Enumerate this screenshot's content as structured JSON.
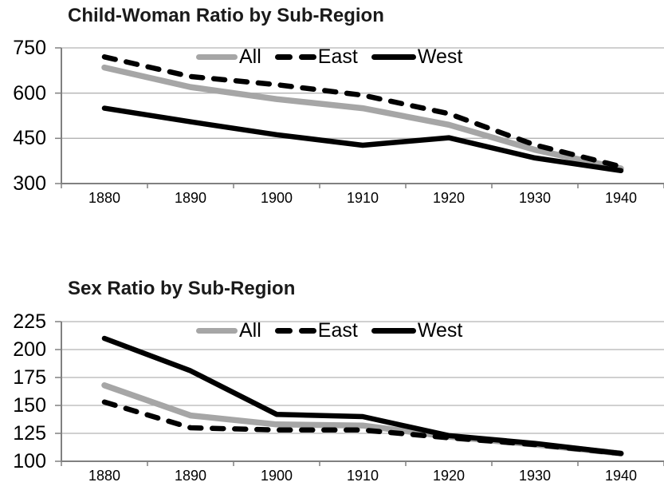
{
  "accent_colors": {
    "series_gray": "#a6a6a6",
    "series_black": "#000000",
    "gridline": "#b3b3b3",
    "axis": "#808080",
    "title_text": "#1a1a1a"
  },
  "chart_data": [
    {
      "type": "line",
      "title": "Child-Woman Ratio by Sub-Region",
      "x": [
        1880,
        1890,
        1900,
        1910,
        1920,
        1930,
        1940
      ],
      "xlabel": "",
      "ylabel": "",
      "ylim": [
        300,
        750
      ],
      "y_ticks": [
        750,
        600,
        450,
        300
      ],
      "grid": true,
      "legend_position": "top-inside",
      "series": [
        {
          "name": "All",
          "color": "#a6a6a6",
          "style": "solid",
          "values": [
            685,
            620,
            580,
            550,
            495,
            412,
            350
          ]
        },
        {
          "name": "East",
          "color": "#000000",
          "style": "dashed",
          "values": [
            720,
            655,
            628,
            593,
            532,
            428,
            356
          ]
        },
        {
          "name": "West",
          "color": "#000000",
          "style": "solid",
          "values": [
            550,
            505,
            462,
            427,
            452,
            385,
            343
          ]
        }
      ]
    },
    {
      "type": "line",
      "title": "Sex Ratio by Sub-Region",
      "x": [
        1880,
        1890,
        1900,
        1910,
        1920,
        1930,
        1940
      ],
      "xlabel": "",
      "ylabel": "",
      "ylim": [
        100,
        225
      ],
      "y_ticks": [
        225,
        200,
        175,
        150,
        125,
        100
      ],
      "grid": true,
      "legend_position": "top-inside",
      "series": [
        {
          "name": "All",
          "color": "#a6a6a6",
          "style": "solid",
          "values": [
            168,
            141,
            133,
            132,
            122,
            115,
            107
          ]
        },
        {
          "name": "East",
          "color": "#000000",
          "style": "dashed",
          "values": [
            153,
            130,
            128,
            128,
            121,
            115,
            107
          ]
        },
        {
          "name": "West",
          "color": "#000000",
          "style": "solid",
          "values": [
            210,
            181,
            142,
            140,
            123,
            116,
            107
          ]
        }
      ]
    }
  ]
}
